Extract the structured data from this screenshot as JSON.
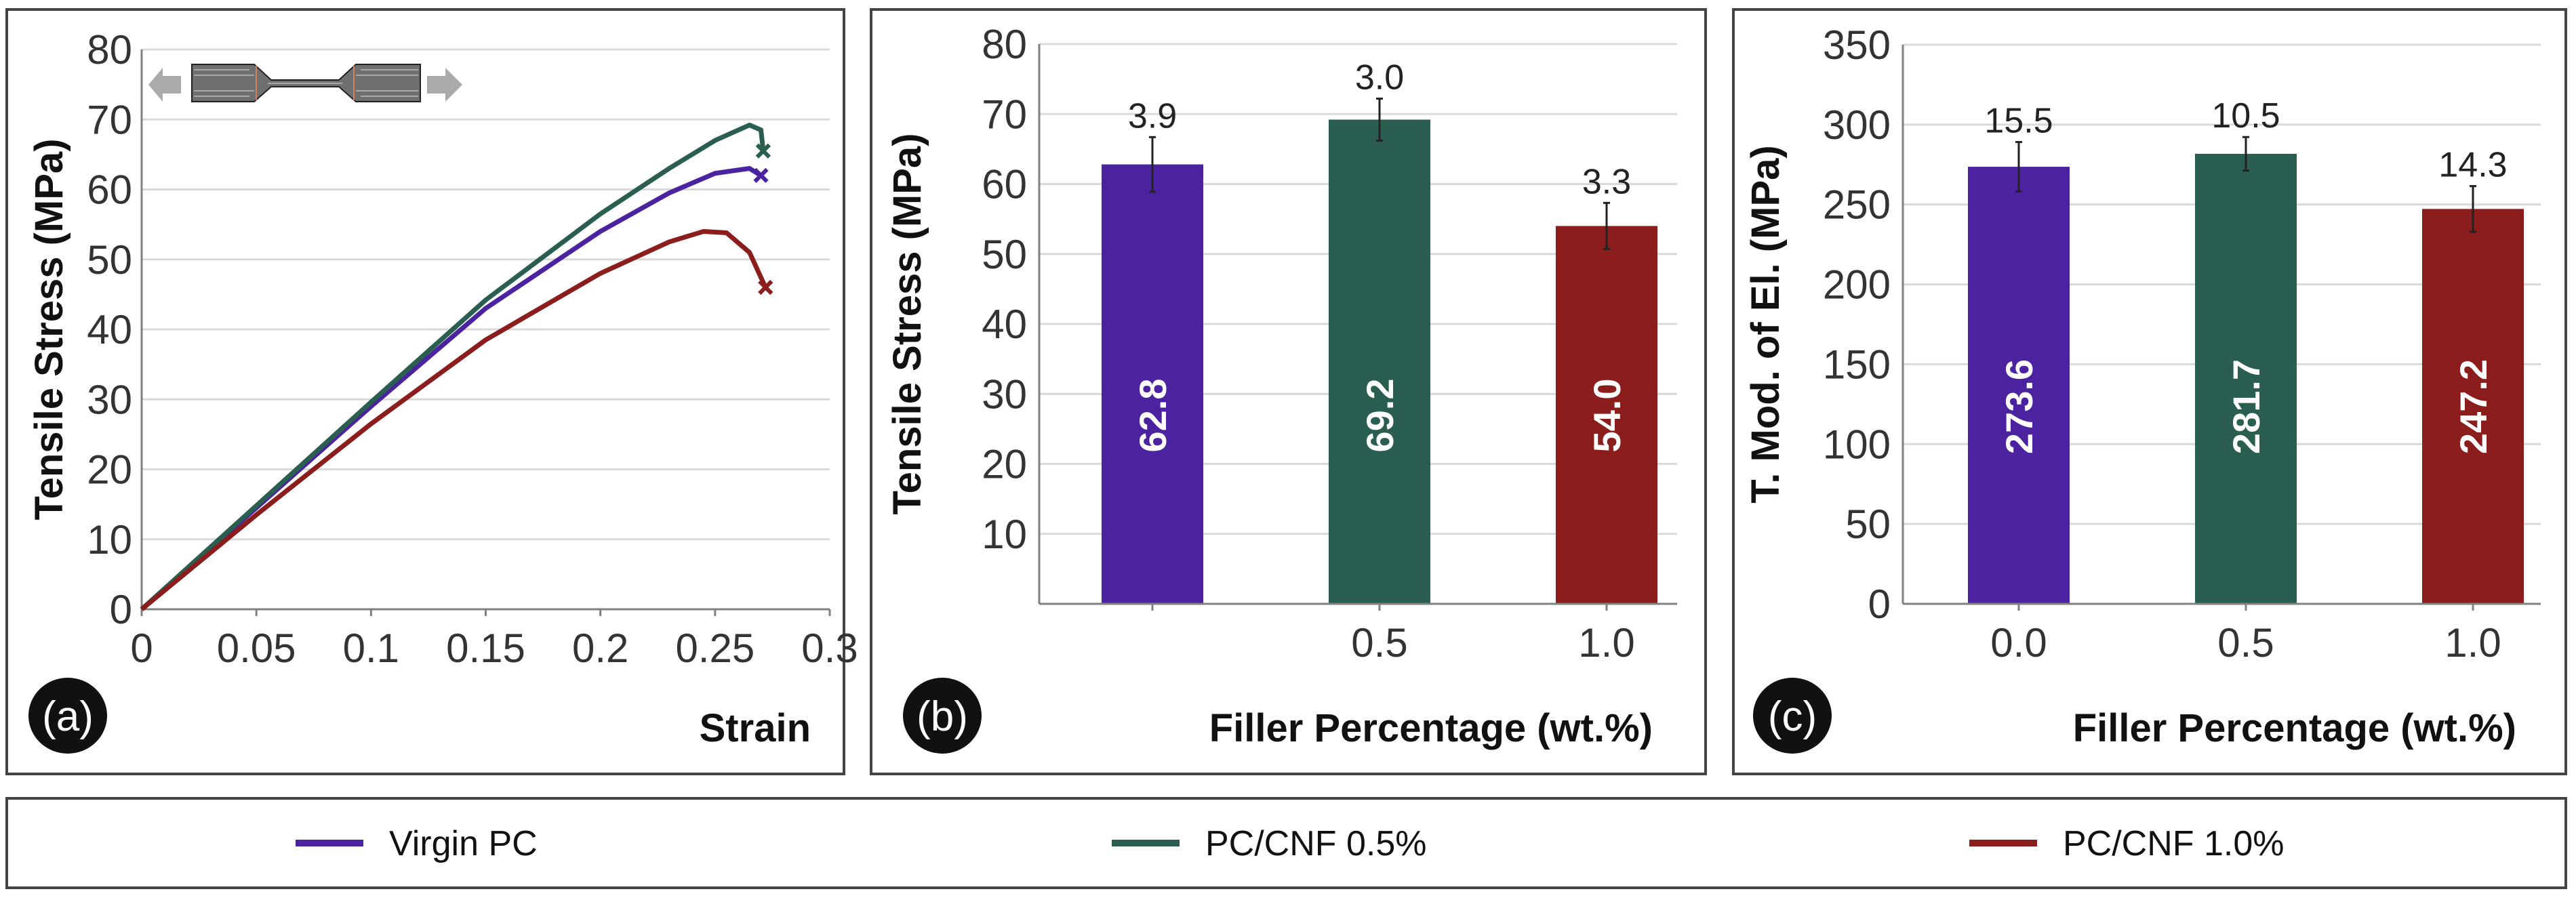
{
  "colors": {
    "virgin": "#4b23a0",
    "cnf05": "#2a5e50",
    "cnf10": "#8b1d1d",
    "grid": "#d9d9d9",
    "axis": "#808080"
  },
  "legend": [
    {
      "label": "Virgin PC",
      "color": "#4b23a0"
    },
    {
      "label": "PC/CNF 0.5%",
      "color": "#2a5e50"
    },
    {
      "label": "PC/CNF 1.0%",
      "color": "#8b1d1d"
    }
  ],
  "chart_data": [
    {
      "panel": "(a)",
      "type": "line",
      "title": "",
      "xlabel": "Strain",
      "ylabel": "Tensile Stress (MPa)",
      "xlim": [
        0,
        0.3
      ],
      "ylim": [
        0,
        80
      ],
      "x_ticks": [
        "0",
        "0.05",
        "0.1",
        "0.15",
        "0.2",
        "0.25",
        "0.3"
      ],
      "y_ticks": [
        "0",
        "10",
        "20",
        "30",
        "40",
        "50",
        "60",
        "70",
        "80"
      ],
      "grid": true,
      "series": [
        {
          "name": "Virgin PC",
          "color": "#4b23a0",
          "points": [
            [
              0,
              0
            ],
            [
              0.05,
              14.5
            ],
            [
              0.1,
              29
            ],
            [
              0.15,
              43
            ],
            [
              0.2,
              54
            ],
            [
              0.23,
              59.5
            ],
            [
              0.25,
              62.3
            ],
            [
              0.265,
              63
            ],
            [
              0.27,
              62
            ]
          ],
          "break_point": [
            0.27,
            62
          ]
        },
        {
          "name": "PC/CNF 0.5%",
          "color": "#2a5e50",
          "points": [
            [
              0,
              0
            ],
            [
              0.05,
              14.8
            ],
            [
              0.1,
              29.6
            ],
            [
              0.15,
              44.2
            ],
            [
              0.2,
              56.5
            ],
            [
              0.23,
              63
            ],
            [
              0.25,
              67
            ],
            [
              0.265,
              69.2
            ],
            [
              0.27,
              68.5
            ],
            [
              0.271,
              65.5
            ]
          ],
          "break_point": [
            0.271,
            65.5
          ]
        },
        {
          "name": "PC/CNF 1.0%",
          "color": "#8b1d1d",
          "points": [
            [
              0,
              0
            ],
            [
              0.05,
              13.5
            ],
            [
              0.1,
              26.5
            ],
            [
              0.15,
              38.5
            ],
            [
              0.2,
              48
            ],
            [
              0.23,
              52.5
            ],
            [
              0.245,
              54
            ],
            [
              0.255,
              53.8
            ],
            [
              0.265,
              51
            ],
            [
              0.272,
              46
            ]
          ],
          "break_point": [
            0.272,
            46
          ]
        }
      ]
    },
    {
      "panel": "(b)",
      "type": "bar",
      "xlabel": "Filler Percentage (wt.%)",
      "ylabel": "Tensile Stress (MPa)",
      "ylim": [
        0,
        80
      ],
      "y_ticks": [
        "",
        "10",
        "20",
        "30",
        "40",
        "50",
        "60",
        "70",
        "80"
      ],
      "categories": [
        "",
        "0.5",
        "1.0"
      ],
      "values": [
        62.8,
        69.2,
        54.0
      ],
      "value_labels": [
        "62.8",
        "69.2",
        "54.0"
      ],
      "errors": [
        3.9,
        3.0,
        3.3
      ],
      "error_labels": [
        "3.9",
        "3.0",
        "3.3"
      ],
      "colors": [
        "#4b23a0",
        "#2a5e50",
        "#8b1d1d"
      ],
      "grid": true
    },
    {
      "panel": "(c)",
      "type": "bar",
      "xlabel": "Filler Percentage (wt.%)",
      "ylabel": "T. Mod. of El. (MPa)",
      "ylim": [
        0,
        350
      ],
      "y_ticks": [
        "0",
        "50",
        "100",
        "150",
        "200",
        "250",
        "300",
        "350"
      ],
      "categories": [
        "0.0",
        "0.5",
        "1.0"
      ],
      "values": [
        273.6,
        281.7,
        247.2
      ],
      "value_labels": [
        "273.6",
        "281.7",
        "247.2"
      ],
      "errors": [
        15.5,
        10.5,
        14.3
      ],
      "error_labels": [
        "15.5",
        "10.5",
        "14.3"
      ],
      "colors": [
        "#4b23a0",
        "#2a5e50",
        "#8b1d1d"
      ],
      "grid": true
    }
  ]
}
